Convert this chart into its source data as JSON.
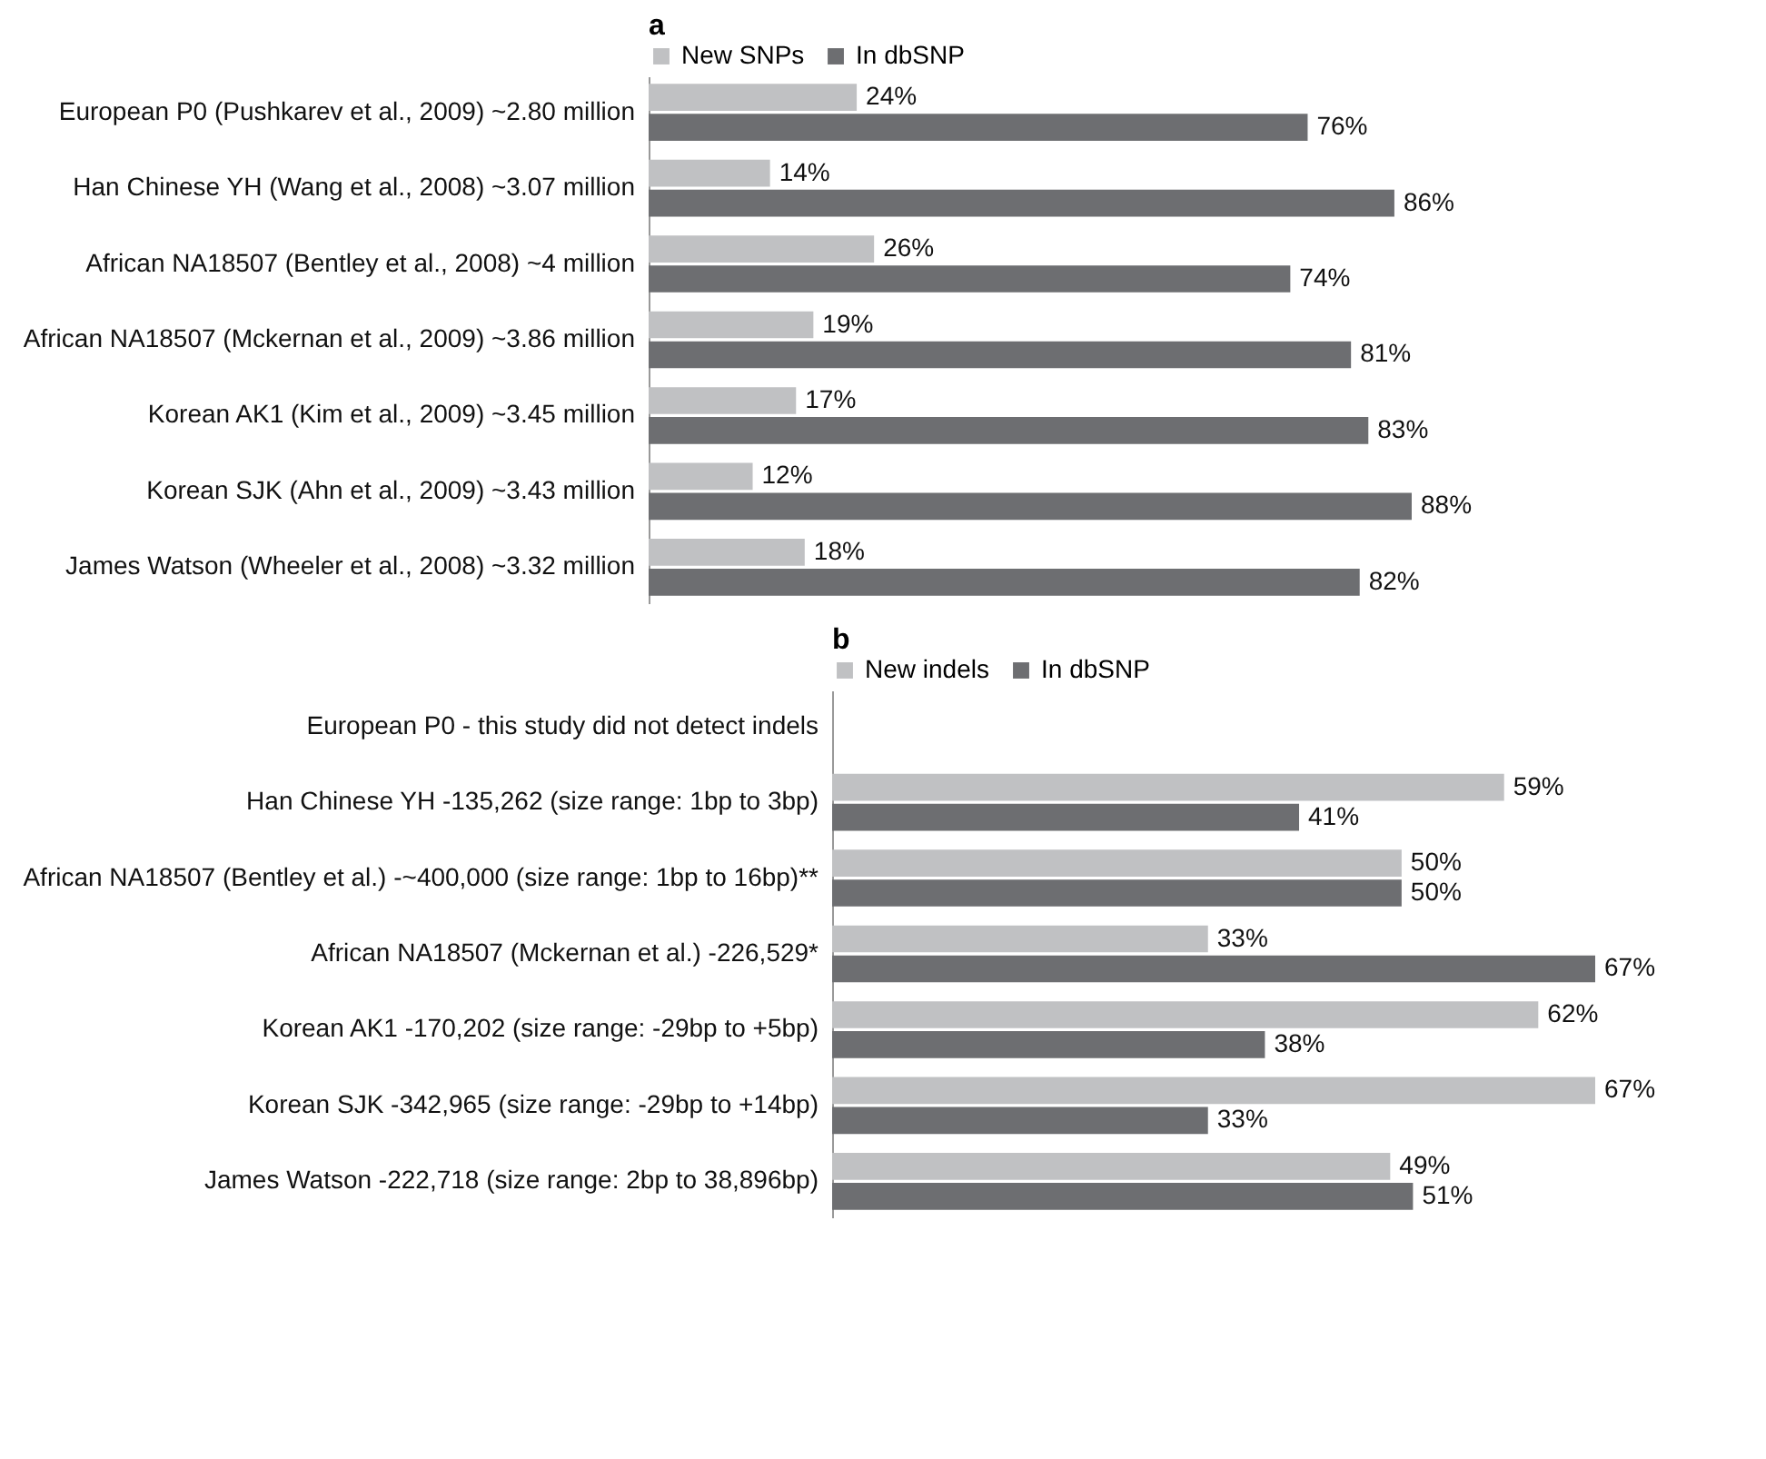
{
  "chart_data": [
    {
      "type": "bar",
      "title": "a",
      "orientation": "horizontal",
      "legend": "top",
      "categories": [
        "European P0 (Pushkarev et al., 2009) ~2.80 million",
        "Han Chinese YH (Wang et al., 2008) ~3.07 million",
        "African NA18507 (Bentley et al., 2008) ~4 million",
        "African NA18507 (Mckernan et al., 2009) ~3.86 million",
        "Korean AK1 (Kim et al., 2009) ~3.45 million",
        "Korean SJK (Ahn et al., 2009) ~3.43 million",
        "James Watson (Wheeler et al., 2008) ~3.32 million"
      ],
      "series": [
        {
          "name": "New SNPs",
          "color": "#c0c1c3",
          "values": [
            24,
            14,
            26,
            19,
            17,
            12,
            18
          ],
          "value_labels": [
            "24%",
            "14%",
            "26%",
            "19%",
            "17%",
            "12%",
            "18%"
          ]
        },
        {
          "name": "In dbSNP",
          "color": "#6d6e71",
          "values": [
            76,
            86,
            74,
            81,
            83,
            88,
            82
          ],
          "value_labels": [
            "76%",
            "86%",
            "74%",
            "81%",
            "83%",
            "88%",
            "82%"
          ]
        }
      ]
    },
    {
      "type": "bar",
      "title": "b",
      "orientation": "horizontal",
      "legend": "top",
      "categories": [
        "European P0 - this study did not detect indels",
        "Han Chinese YH -135,262 (size range: 1bp to 3bp)",
        "African NA18507 (Bentley et al.) -~400,000 (size range: 1bp to 16bp)**",
        "African NA18507 (Mckernan et al.) -226,529*",
        "Korean AK1 -170,202 (size range: -29bp to +5bp)",
        "Korean SJK -342,965 (size range: -29bp to +14bp)",
        "James Watson -222,718 (size range: 2bp to 38,896bp)"
      ],
      "series": [
        {
          "name": "New indels",
          "color": "#c0c1c3",
          "values": [
            null,
            59,
            50,
            33,
            62,
            67,
            49
          ],
          "value_labels": [
            null,
            "59%",
            "50%",
            "33%",
            "62%",
            "67%",
            "49%"
          ]
        },
        {
          "name": "In dbSNP",
          "color": "#6d6e71",
          "values": [
            null,
            41,
            50,
            67,
            38,
            33,
            51
          ],
          "value_labels": [
            null,
            "41%",
            "50%",
            "67%",
            "38%",
            "33%",
            "51%"
          ]
        }
      ]
    }
  ]
}
